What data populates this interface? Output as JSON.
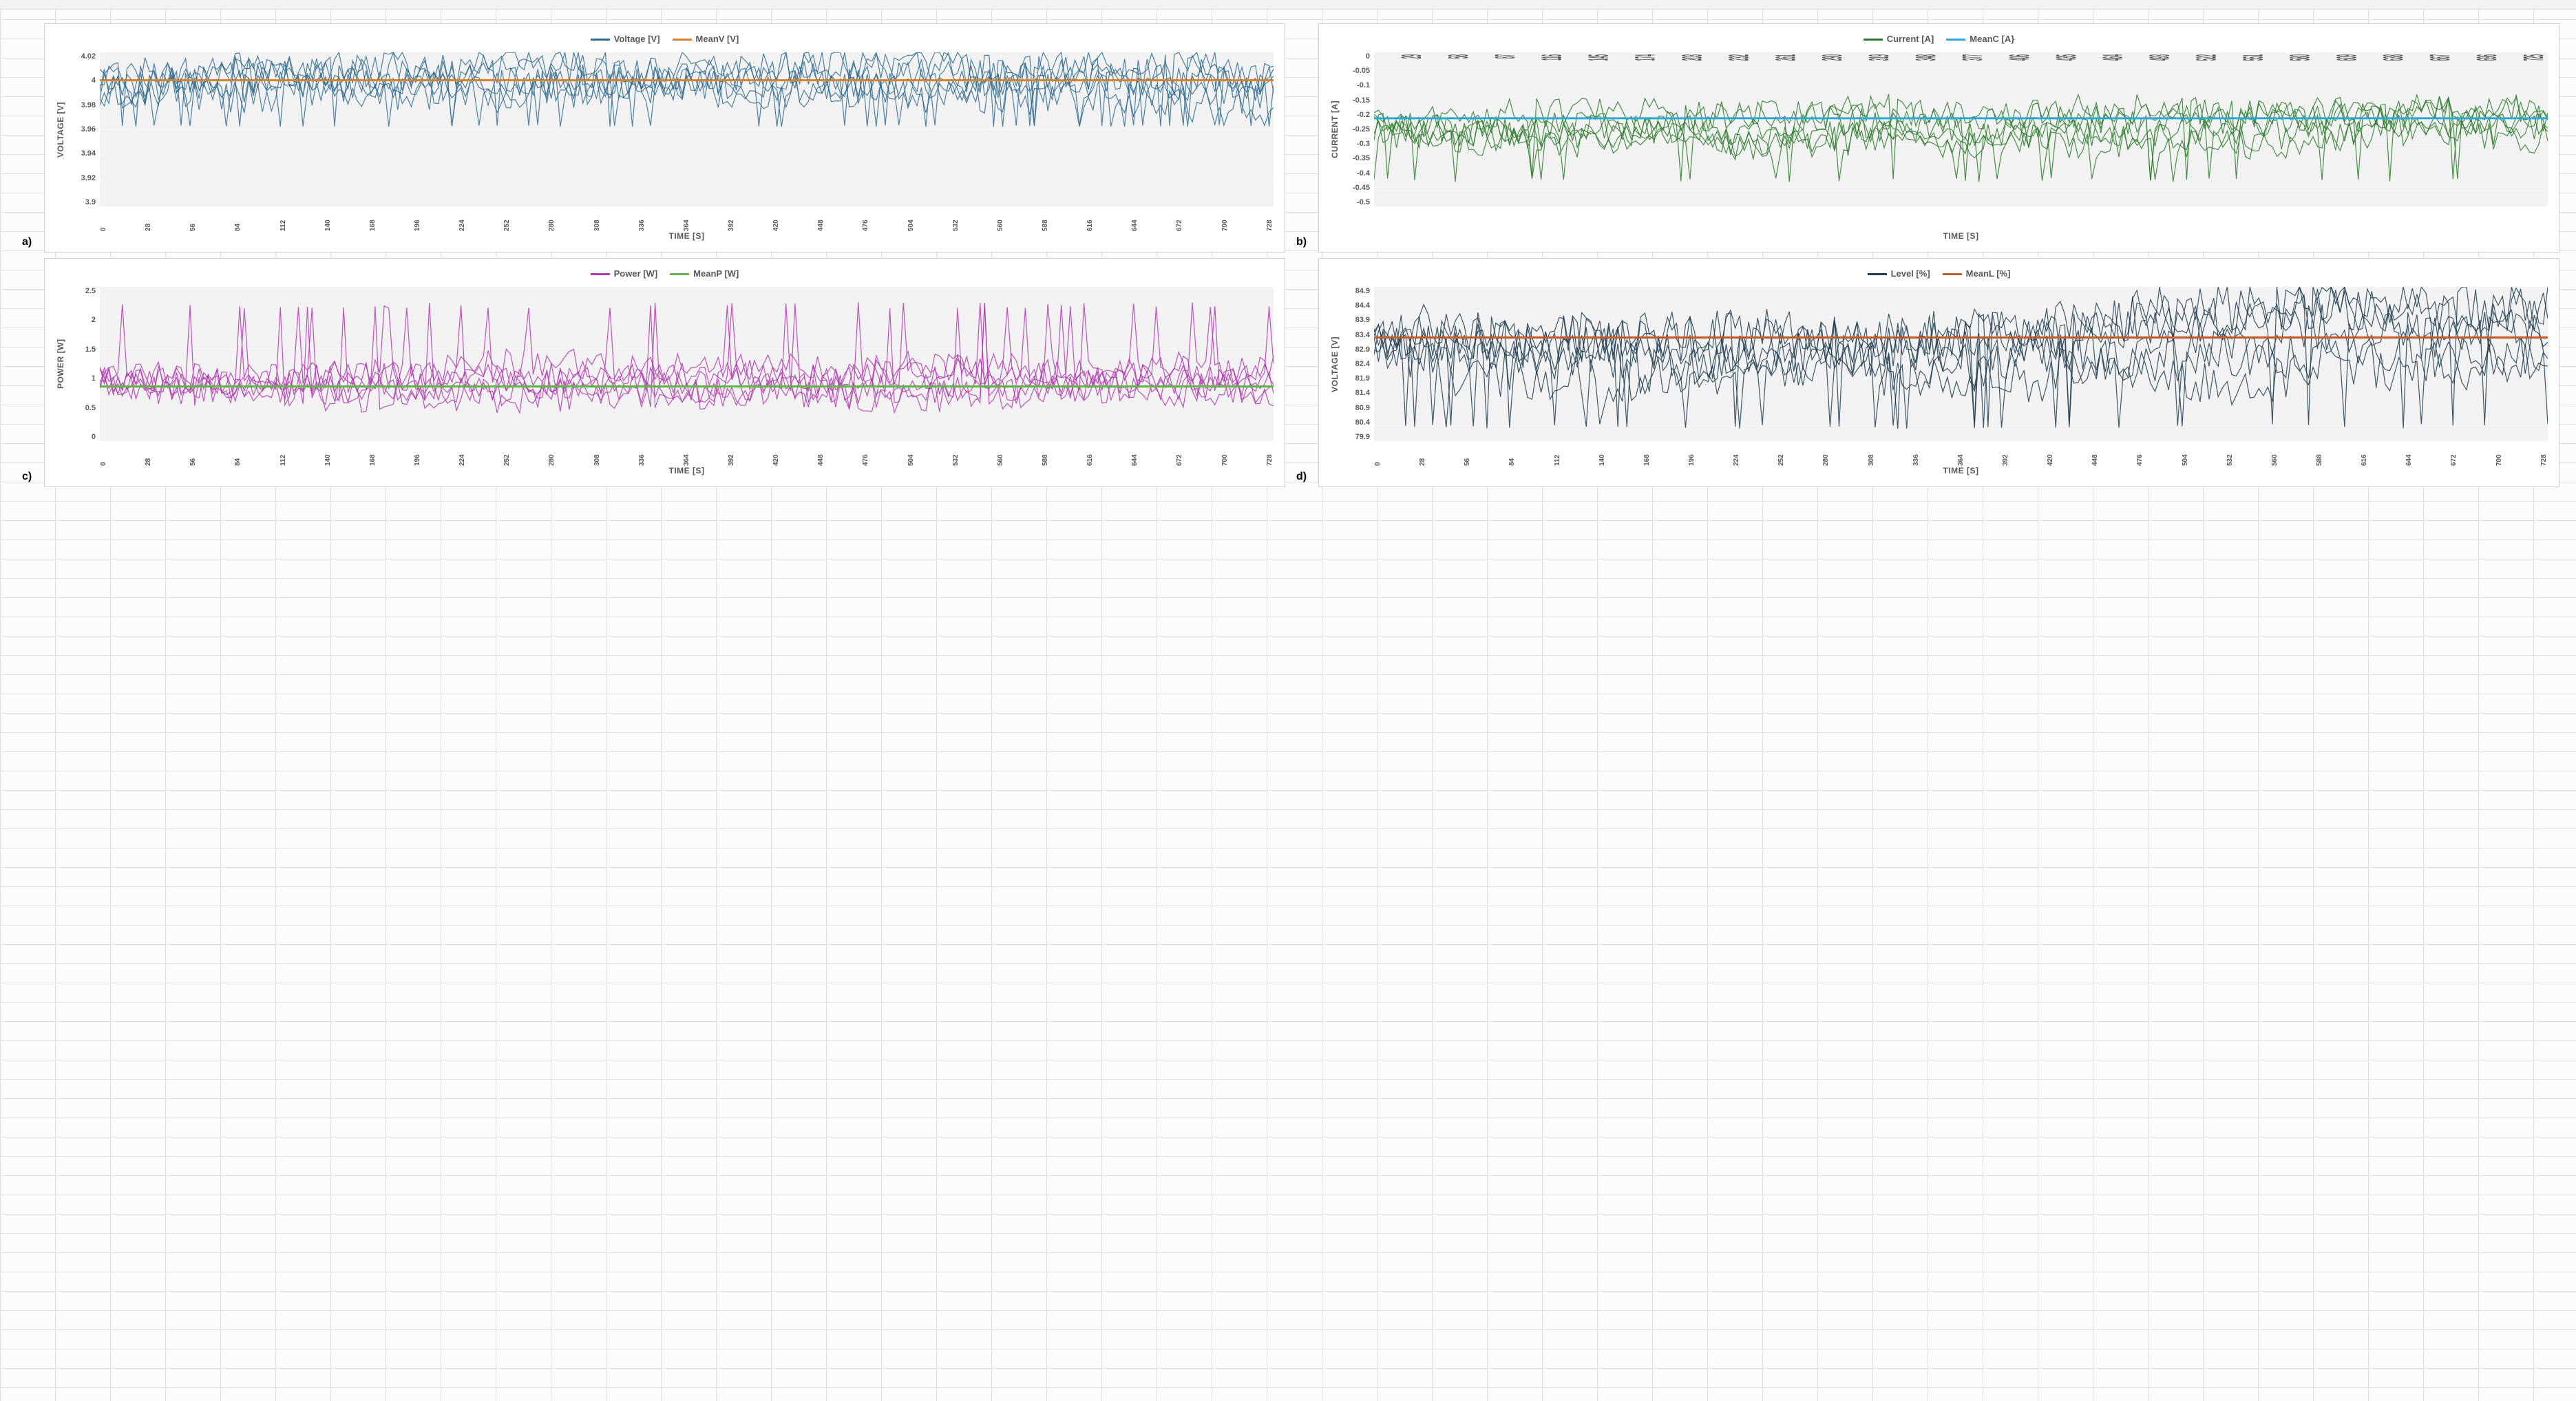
{
  "layout": {
    "background_color": "#fcfcfc",
    "spreadsheet_gridline_color": "#e0e0e0",
    "chart_border_color": "#d0d0d0",
    "chart_background": "#ffffff",
    "plot_background": "#f2f2f2",
    "grid_color": "#ffffff",
    "axis_text_color": "#595959",
    "label_fontsize": 12,
    "tick_fontsize": 11
  },
  "x_axis": {
    "title": "TIME [S]",
    "ticks": [
      0,
      28,
      56,
      84,
      112,
      140,
      168,
      196,
      224,
      252,
      280,
      308,
      336,
      364,
      392,
      420,
      448,
      476,
      504,
      532,
      560,
      588,
      616,
      644,
      672,
      700,
      728
    ],
    "xlim": [
      0,
      728
    ]
  },
  "x_axis_b": {
    "title": "TIME [S]",
    "ticks": [
      0,
      29,
      58,
      87,
      116,
      145,
      174,
      203,
      232,
      261,
      290,
      319,
      348,
      377,
      406,
      435,
      464,
      493,
      522,
      551,
      580,
      609,
      638,
      667,
      696,
      725
    ],
    "xlim": [
      0,
      728
    ]
  },
  "charts": {
    "a": {
      "subplot_label": "a)",
      "yaxis_title": "VOLTAGE [V]",
      "ylim": [
        3.9,
        4.02
      ],
      "ytick_step": 0.02,
      "yticks": [
        3.9,
        3.92,
        3.94,
        3.96,
        3.98,
        4.0,
        4.02
      ],
      "legend": [
        {
          "label": "Voltage [V]",
          "color": "#2f6b8f"
        },
        {
          "label": "MeanV [V]",
          "color": "#d9802b"
        }
      ],
      "mean_value": 3.998,
      "mean_color": "#d9802b",
      "data_color": "#2f6b8f",
      "data_band": [
        3.975,
        4.012
      ],
      "data_spike_min": 3.962,
      "noise_amp": 0.015
    },
    "b": {
      "subplot_label": "b)",
      "yaxis_title": "CURRENT [A]",
      "ylim": [
        -0.5,
        0
      ],
      "ytick_step": 0.05,
      "yticks": [
        0,
        -0.05,
        -0.1,
        -0.15,
        -0.2,
        -0.25,
        -0.3,
        -0.35,
        -0.4,
        -0.45,
        -0.5
      ],
      "legend": [
        {
          "label": "Current [A]",
          "color": "#2b7a2b"
        },
        {
          "label": "MeanC [A}",
          "color": "#2aa8d8"
        }
      ],
      "mean_value": -0.215,
      "mean_color": "#2aa8d8",
      "data_color": "#2b7a2b",
      "data_band": [
        -0.3,
        -0.18
      ],
      "data_spike_min": -0.42,
      "noise_amp": 0.05
    },
    "c": {
      "subplot_label": "c)",
      "yaxis_title": "POWER [W]",
      "ylim": [
        0,
        2.5
      ],
      "ytick_step": 0.5,
      "yticks": [
        0,
        0.5,
        1.0,
        1.5,
        2.0,
        2.5
      ],
      "legend": [
        {
          "label": "Power [W]",
          "color": "#b038b0"
        },
        {
          "label": "MeanP [W]",
          "color": "#5fb548"
        }
      ],
      "mean_value": 0.88,
      "mean_color": "#5fb548",
      "data_color": "#b038b0",
      "data_band": [
        0.7,
        1.25
      ],
      "data_spike_max": 2.25,
      "noise_amp": 0.25
    },
    "d": {
      "subplot_label": "d)",
      "yaxis_title": "VOLTAGE [V]",
      "ylim": [
        79.9,
        84.9
      ],
      "ytick_step": 0.5,
      "yticks": [
        84.9,
        84.4,
        83.9,
        83.4,
        82.9,
        82.4,
        81.9,
        81.4,
        80.9,
        80.4,
        79.9
      ],
      "legend": [
        {
          "label": "Level [%]",
          "color": "#1f3b4d"
        },
        {
          "label": "MeanL [%]",
          "color": "#c05a2a"
        }
      ],
      "mean_value": 83.25,
      "mean_color": "#c05a2a",
      "data_color": "#1f3b4d",
      "data_band": [
        81.8,
        84.3
      ],
      "data_spike_min": 80.3,
      "noise_amp": 0.8
    }
  }
}
